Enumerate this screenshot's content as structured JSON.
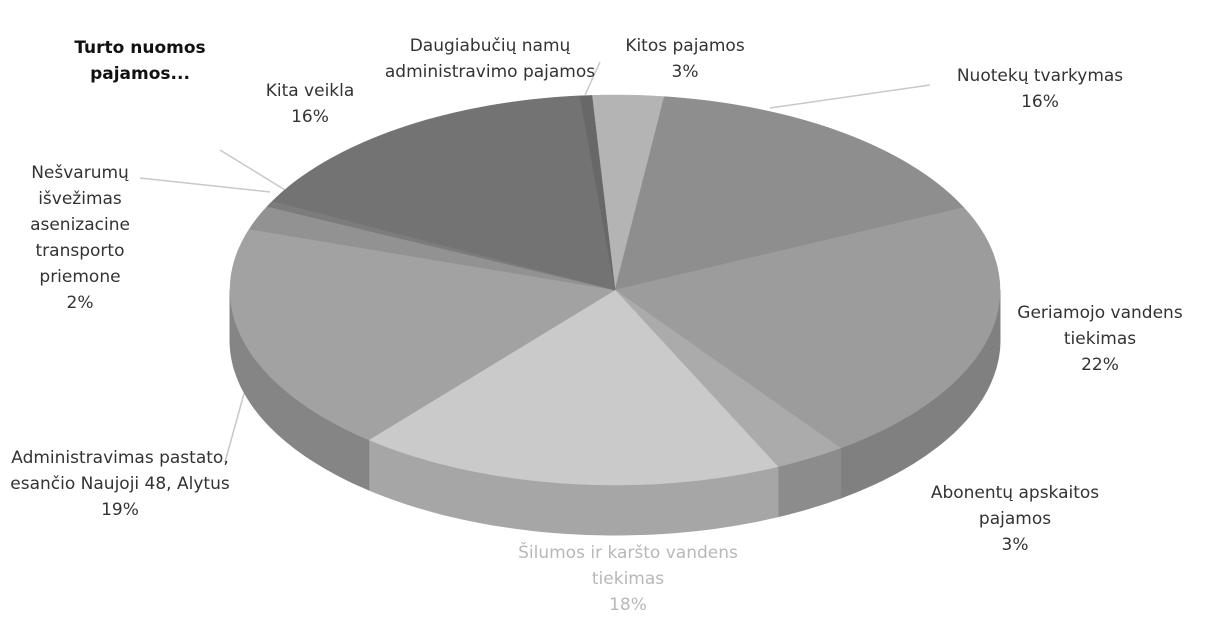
{
  "chart_data": {
    "type": "pie3d",
    "categories": [
      "Kitos pajamos",
      "Nuotekų tvarkymas",
      "Geriamojo vandens tiekimas",
      "Abonentų apskaitos pajamos",
      "Šilumos ir karšto vandens tiekimas",
      "Administravimas pastato, esančio Naujoji 48, Alytus",
      "Nešvarumų išvežimas asenizacine transporto priemone",
      "Turto nuomos pajamos...",
      "Kita veikla",
      "Daugiabučių namų administravimo pajamos"
    ],
    "values": [
      3,
      16,
      22,
      3,
      18,
      19,
      2,
      0.5,
      16,
      0.5
    ],
    "value_labels": [
      "3%",
      "16%",
      "22%",
      "3%",
      "18%",
      "19%",
      "2%",
      null,
      "16%",
      null
    ],
    "colors": [
      "#b4b4b4",
      "#8e8e8e",
      "#9c9c9c",
      "#ababab",
      "#cacaca",
      "#a2a2a2",
      "#929292",
      "#7c7c7c",
      "#737373",
      "#686868"
    ]
  }
}
